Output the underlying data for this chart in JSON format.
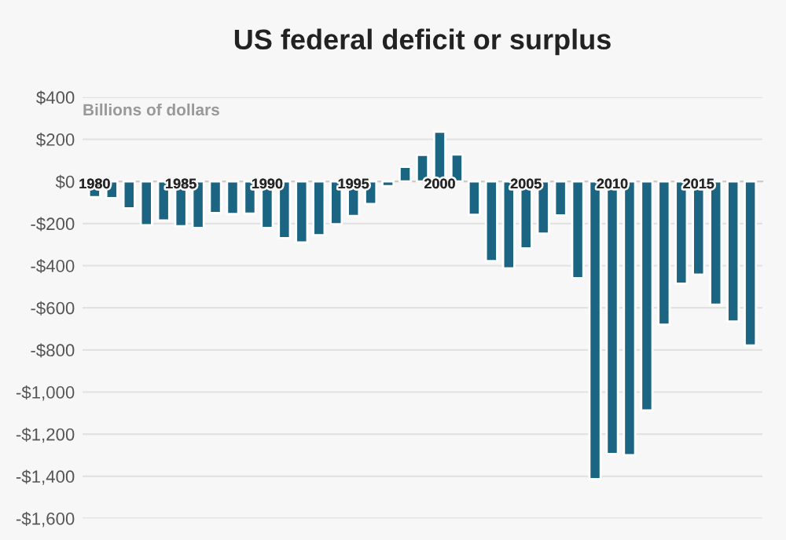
{
  "chart_data": {
    "type": "bar",
    "title": "US federal deficit or surplus",
    "subtitle": "Billions of dollars",
    "categories": [
      "1980",
      null,
      null,
      null,
      null,
      "1985",
      null,
      null,
      null,
      null,
      "1990",
      null,
      null,
      null,
      null,
      "1995",
      null,
      null,
      null,
      null,
      "2000",
      null,
      null,
      null,
      null,
      "2005",
      null,
      null,
      null,
      null,
      "2010",
      null,
      null,
      null,
      null,
      "2015",
      null,
      null,
      null
    ],
    "values": [
      -74,
      -79,
      -128,
      -208,
      -185,
      -212,
      -221,
      -150,
      -155,
      -153,
      -221,
      -269,
      -290,
      -255,
      -203,
      -164,
      -107,
      -22,
      69,
      126,
      236,
      128,
      -158,
      -378,
      -413,
      -318,
      -248,
      -161,
      -459,
      -1413,
      -1294,
      -1300,
      -1087,
      -680,
      -485,
      -442,
      -585,
      -665,
      -779
    ],
    "color": "#1b6582",
    "ylim": [
      -1600,
      400
    ],
    "yticks": [
      {
        "value": 400,
        "label": "$400"
      },
      {
        "value": 200,
        "label": "$200"
      },
      {
        "value": 0,
        "label": "$0"
      },
      {
        "value": -200,
        "label": "-$200"
      },
      {
        "value": -400,
        "label": "-$400"
      },
      {
        "value": -600,
        "label": "-$600"
      },
      {
        "value": -800,
        "label": "-$800"
      },
      {
        "value": -1000,
        "label": "-$1,000"
      },
      {
        "value": -1200,
        "label": "-$1,200"
      },
      {
        "value": -1400,
        "label": "-$1,400"
      },
      {
        "value": -1600,
        "label": "-$1,600"
      }
    ],
    "grid": "y"
  }
}
